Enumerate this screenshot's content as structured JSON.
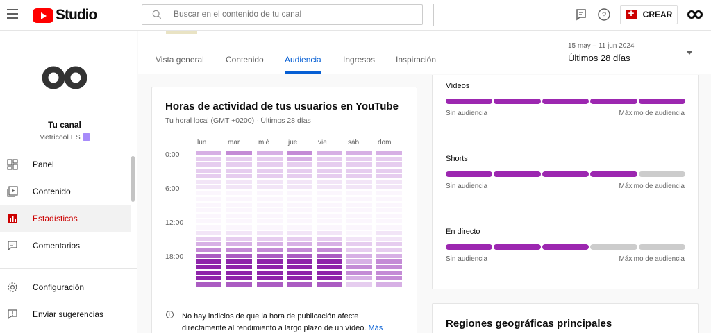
{
  "header": {
    "logo_text": "Studio",
    "search_placeholder": "Buscar en el contenido de tu canal",
    "create_label": "CREAR",
    "icons": [
      "menu-icon",
      "search-icon",
      "feedback-icon",
      "help-icon",
      "create-video-icon",
      "account-icon"
    ]
  },
  "sidebar": {
    "channel_title": "Tu canal",
    "channel_name": "Metricool ES",
    "items": [
      {
        "label": "Panel",
        "icon": "dashboard-icon",
        "active": false
      },
      {
        "label": "Contenido",
        "icon": "content-icon",
        "active": false
      },
      {
        "label": "Estadísticas",
        "icon": "analytics-icon",
        "active": true
      },
      {
        "label": "Comentarios",
        "icon": "comments-icon",
        "active": false
      }
    ],
    "bottom_items": [
      {
        "label": "Configuración",
        "icon": "gear-icon"
      },
      {
        "label": "Enviar sugerencias",
        "icon": "feedback-icon"
      }
    ]
  },
  "tabs": [
    "Vista general",
    "Contenido",
    "Audiencia",
    "Ingresos",
    "Inspiración"
  ],
  "active_tab": "Audiencia",
  "date": {
    "range": "15 may – 11 jun 2024",
    "label": "Últimos 28 días"
  },
  "heatmap": {
    "title": "Horas de actividad de tus usuarios en YouTube",
    "subtitle": "Tu horal local (GMT +0200) · Últimos 28 días",
    "days": [
      "lun",
      "mar",
      "mié",
      "jue",
      "vie",
      "sáb",
      "dom"
    ],
    "hour_labels": [
      "0:00",
      "6:00",
      "12:00",
      "18:00"
    ],
    "note": "No hay indicios de que la hora de publicación afecte directamente al rendimiento a largo plazo de un vídeo.",
    "note_link": "Más información",
    "levels": [
      [
        3,
        4,
        3,
        4,
        3,
        3,
        3
      ],
      [
        2,
        2,
        2,
        3,
        2,
        2,
        2
      ],
      [
        2,
        2,
        2,
        2,
        2,
        2,
        2
      ],
      [
        2,
        2,
        2,
        2,
        2,
        2,
        2
      ],
      [
        2,
        2,
        2,
        2,
        2,
        2,
        2
      ],
      [
        1,
        1,
        1,
        1,
        1,
        1,
        1
      ],
      [
        1,
        1,
        1,
        1,
        1,
        1,
        1
      ],
      [
        0,
        0,
        0,
        0,
        0,
        0,
        0
      ],
      [
        0,
        0,
        0,
        0,
        0,
        0,
        0
      ],
      [
        0,
        0,
        0,
        0,
        0,
        0,
        0
      ],
      [
        0,
        0,
        0,
        0,
        0,
        0,
        0
      ],
      [
        0,
        0,
        0,
        0,
        0,
        0,
        0
      ],
      [
        0,
        0,
        0,
        0,
        0,
        0,
        0
      ],
      [
        0,
        0,
        0,
        0,
        0,
        0,
        0
      ],
      [
        1,
        1,
        1,
        1,
        1,
        0,
        1
      ],
      [
        2,
        2,
        2,
        2,
        2,
        1,
        1
      ],
      [
        3,
        3,
        3,
        3,
        3,
        2,
        2
      ],
      [
        4,
        4,
        4,
        4,
        4,
        2,
        2
      ],
      [
        5,
        5,
        5,
        5,
        5,
        3,
        3
      ],
      [
        6,
        6,
        6,
        6,
        6,
        3,
        4
      ],
      [
        6,
        6,
        6,
        6,
        6,
        4,
        4
      ],
      [
        6,
        6,
        6,
        6,
        6,
        4,
        4
      ],
      [
        6,
        6,
        6,
        6,
        6,
        3,
        4
      ],
      [
        5,
        5,
        5,
        5,
        5,
        2,
        3
      ]
    ]
  },
  "audience_types": [
    {
      "title": "Vídeos",
      "min": "Sin audiencia",
      "max": "Máximo de audiencia",
      "filled": 5
    },
    {
      "title": "Shorts",
      "min": "Sin audiencia",
      "max": "Máximo de audiencia",
      "filled": 4
    },
    {
      "title": "En directo",
      "min": "Sin audiencia",
      "max": "Máximo de audiencia",
      "filled": 3
    }
  ],
  "regions_title": "Regiones geográficas principales",
  "colors": {
    "accent": "#065fd4",
    "active_red": "#cc0000",
    "bar_fill": "#9c27b0",
    "bar_empty": "#cccccc"
  }
}
